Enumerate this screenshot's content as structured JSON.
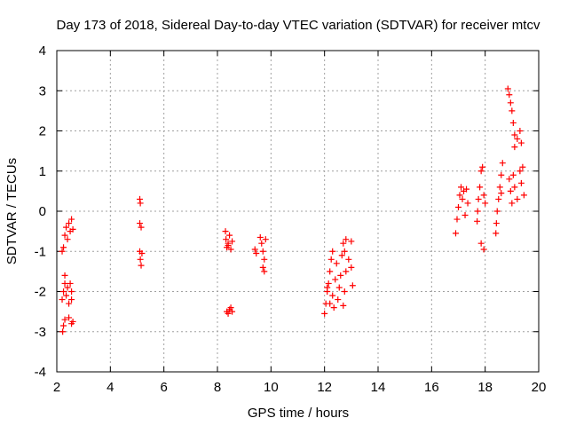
{
  "chart_data": {
    "type": "scatter",
    "title": "Day 173 of 2018, Sidereal Day-to-day VTEC variation (SDTVAR) for receiver mtcv",
    "xlabel": "GPS time / hours",
    "ylabel": "SDTVAR / TECUs",
    "xlim": [
      2,
      20
    ],
    "ylim": [
      -4,
      4
    ],
    "xticks": [
      2,
      4,
      6,
      8,
      10,
      12,
      14,
      16,
      18,
      20
    ],
    "yticks": [
      -4,
      -3,
      -2,
      -1,
      0,
      1,
      2,
      3,
      4
    ],
    "grid": true,
    "marker": "+",
    "color": "#ff0000",
    "points": [
      [
        2.22,
        -3.0
      ],
      [
        2.25,
        -2.85
      ],
      [
        2.3,
        -2.7
      ],
      [
        2.45,
        -2.65
      ],
      [
        2.55,
        -2.8
      ],
      [
        2.6,
        -2.75
      ],
      [
        2.2,
        -2.2
      ],
      [
        2.25,
        -2.0
      ],
      [
        2.3,
        -1.8
      ],
      [
        2.3,
        -1.6
      ],
      [
        2.35,
        -2.1
      ],
      [
        2.4,
        -1.9
      ],
      [
        2.45,
        -2.3
      ],
      [
        2.5,
        -1.8
      ],
      [
        2.55,
        -2.0
      ],
      [
        2.55,
        -2.2
      ],
      [
        2.2,
        -1.0
      ],
      [
        2.25,
        -0.9
      ],
      [
        2.3,
        -0.6
      ],
      [
        2.35,
        -0.4
      ],
      [
        2.4,
        -0.7
      ],
      [
        2.45,
        -0.3
      ],
      [
        2.5,
        -0.5
      ],
      [
        2.55,
        -0.2
      ],
      [
        2.6,
        -0.45
      ],
      [
        5.1,
        0.3
      ],
      [
        5.12,
        0.2
      ],
      [
        5.1,
        -0.3
      ],
      [
        5.15,
        -0.4
      ],
      [
        5.1,
        -1.0
      ],
      [
        5.12,
        -1.2
      ],
      [
        5.15,
        -1.35
      ],
      [
        5.18,
        -1.05
      ],
      [
        8.3,
        -0.5
      ],
      [
        8.32,
        -0.7
      ],
      [
        8.35,
        -0.9
      ],
      [
        8.4,
        -0.8
      ],
      [
        8.45,
        -0.6
      ],
      [
        8.5,
        -0.95
      ],
      [
        8.55,
        -0.75
      ],
      [
        8.4,
        -0.85
      ],
      [
        8.35,
        -2.5
      ],
      [
        8.4,
        -2.55
      ],
      [
        8.45,
        -2.45
      ],
      [
        8.5,
        -2.4
      ],
      [
        8.55,
        -2.5
      ],
      [
        9.4,
        -0.95
      ],
      [
        9.45,
        -1.05
      ],
      [
        9.6,
        -0.65
      ],
      [
        9.65,
        -0.8
      ],
      [
        9.7,
        -1.0
      ],
      [
        9.75,
        -1.2
      ],
      [
        9.7,
        -1.4
      ],
      [
        9.75,
        -1.5
      ],
      [
        9.8,
        -0.7
      ],
      [
        12.0,
        -2.55
      ],
      [
        12.05,
        -2.3
      ],
      [
        12.1,
        -2.0
      ],
      [
        12.15,
        -1.8
      ],
      [
        12.2,
        -1.5
      ],
      [
        12.25,
        -1.2
      ],
      [
        12.3,
        -1.0
      ],
      [
        12.3,
        -2.1
      ],
      [
        12.35,
        -2.4
      ],
      [
        12.4,
        -1.7
      ],
      [
        12.45,
        -1.3
      ],
      [
        12.5,
        -2.2
      ],
      [
        12.55,
        -1.9
      ],
      [
        12.6,
        -1.6
      ],
      [
        12.65,
        -1.1
      ],
      [
        12.7,
        -0.8
      ],
      [
        12.75,
        -1.0
      ],
      [
        12.8,
        -0.7
      ],
      [
        12.7,
        -2.35
      ],
      [
        12.75,
        -2.0
      ],
      [
        12.8,
        -1.5
      ],
      [
        12.1,
        -1.9
      ],
      [
        12.2,
        -2.3
      ],
      [
        13.0,
        -0.75
      ],
      [
        13.0,
        -1.4
      ],
      [
        13.05,
        -1.85
      ],
      [
        12.9,
        -1.2
      ],
      [
        16.9,
        -0.55
      ],
      [
        16.95,
        -0.2
      ],
      [
        17.0,
        0.1
      ],
      [
        17.05,
        0.4
      ],
      [
        17.1,
        0.6
      ],
      [
        17.15,
        0.3
      ],
      [
        17.2,
        0.5
      ],
      [
        17.25,
        -0.1
      ],
      [
        17.3,
        0.55
      ],
      [
        17.35,
        0.2
      ],
      [
        17.7,
        -0.25
      ],
      [
        17.72,
        0.0
      ],
      [
        17.75,
        0.3
      ],
      [
        17.8,
        0.6
      ],
      [
        17.85,
        1.0
      ],
      [
        17.9,
        1.1
      ],
      [
        17.95,
        0.4
      ],
      [
        17.85,
        -0.8
      ],
      [
        17.95,
        -0.95
      ],
      [
        18.0,
        0.2
      ],
      [
        18.4,
        -0.55
      ],
      [
        18.42,
        -0.3
      ],
      [
        18.45,
        0.0
      ],
      [
        18.5,
        0.3
      ],
      [
        18.55,
        0.6
      ],
      [
        18.6,
        0.9
      ],
      [
        18.65,
        1.2
      ],
      [
        18.6,
        0.45
      ],
      [
        18.85,
        3.05
      ],
      [
        18.9,
        2.9
      ],
      [
        18.95,
        2.7
      ],
      [
        19.0,
        2.5
      ],
      [
        19.05,
        2.2
      ],
      [
        19.1,
        1.9
      ],
      [
        19.1,
        1.6
      ],
      [
        19.2,
        1.8
      ],
      [
        19.3,
        2.0
      ],
      [
        19.35,
        1.7
      ],
      [
        18.9,
        0.8
      ],
      [
        18.95,
        0.5
      ],
      [
        19.0,
        0.2
      ],
      [
        19.05,
        0.9
      ],
      [
        19.1,
        0.6
      ],
      [
        19.2,
        0.3
      ],
      [
        19.3,
        1.0
      ],
      [
        19.35,
        0.7
      ],
      [
        19.4,
        1.1
      ],
      [
        19.45,
        0.4
      ]
    ]
  }
}
